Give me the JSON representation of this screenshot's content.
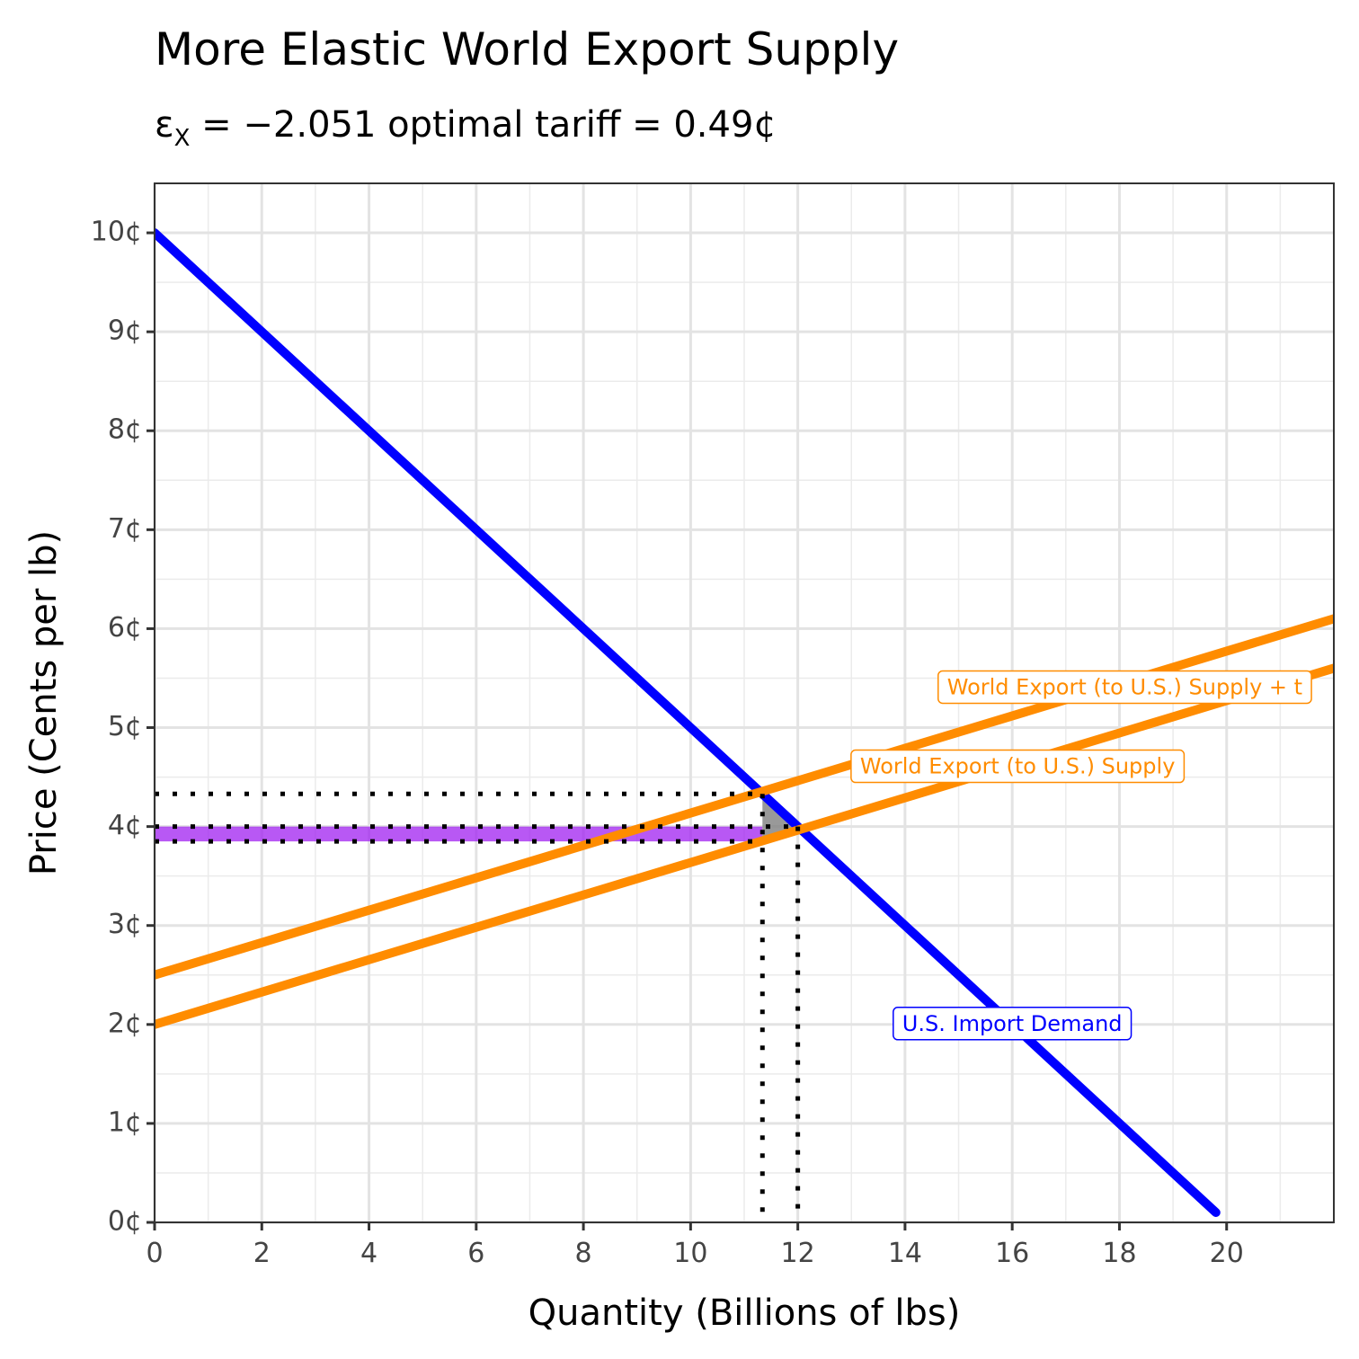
{
  "chart_data": {
    "type": "line",
    "title": "More Elastic World Export Supply",
    "subtitle": {
      "epsilon": "ε",
      "epsilon_sub": "X",
      "text": " = −2.051 optimal tariff = 0.49¢"
    },
    "xlabel": "Quantity (Billions of lbs)",
    "ylabel": "Price (Cents per lb)",
    "xlim": [
      0,
      22
    ],
    "ylim": [
      0,
      10.5
    ],
    "x_ticks": [
      0,
      2,
      4,
      6,
      8,
      10,
      12,
      14,
      16,
      18,
      20
    ],
    "x_tick_labels": [
      "0",
      "2",
      "4",
      "6",
      "8",
      "10",
      "12",
      "14",
      "16",
      "18",
      "20"
    ],
    "y_ticks": [
      0,
      1,
      2,
      3,
      4,
      5,
      6,
      7,
      8,
      9,
      10
    ],
    "y_tick_labels": [
      "0¢",
      "1¢",
      "2¢",
      "3¢",
      "4¢",
      "5¢",
      "6¢",
      "7¢",
      "8¢",
      "9¢",
      "10¢"
    ],
    "grid": true,
    "series": [
      {
        "key": "demand",
        "x": [
          0,
          19.8
        ],
        "y": [
          10,
          0.1
        ],
        "color": "#0000FF"
      },
      {
        "key": "supply",
        "x": [
          0,
          22
        ],
        "y": [
          2,
          5.6
        ],
        "color": "#FF8C00"
      },
      {
        "key": "supply_tariff",
        "x": [
          0,
          22
        ],
        "y": [
          2.5,
          6.1
        ],
        "color": "#FF8C00"
      }
    ],
    "labels": [
      {
        "key": "supply_tariff",
        "text": "World Export (to U.S.) Supply + t",
        "x": 18.1,
        "y": 5.4,
        "color": "#FF8C00"
      },
      {
        "key": "supply",
        "text": "World Export (to U.S.) Supply",
        "x": 16.1,
        "y": 4.6,
        "color": "#FF8C00"
      },
      {
        "key": "demand",
        "text": "U.S. Import Demand",
        "x": 16.0,
        "y": 2.0,
        "color": "#0000FF"
      }
    ],
    "free_trade": {
      "quantity": 12.0,
      "price": 4.0
    },
    "with_tariff": {
      "quantity": 11.34,
      "price_consumer": 4.33,
      "price_world": 3.85
    },
    "terms_of_trade_gain": {
      "x": [
        0,
        11.34
      ],
      "y_low": 3.85,
      "y_high": 4.0,
      "color": "#A020F0"
    },
    "deadweight_loss": {
      "points": [
        [
          11.34,
          4.33
        ],
        [
          12.0,
          4.0
        ],
        [
          11.34,
          3.85
        ]
      ],
      "color": "#808080"
    }
  }
}
